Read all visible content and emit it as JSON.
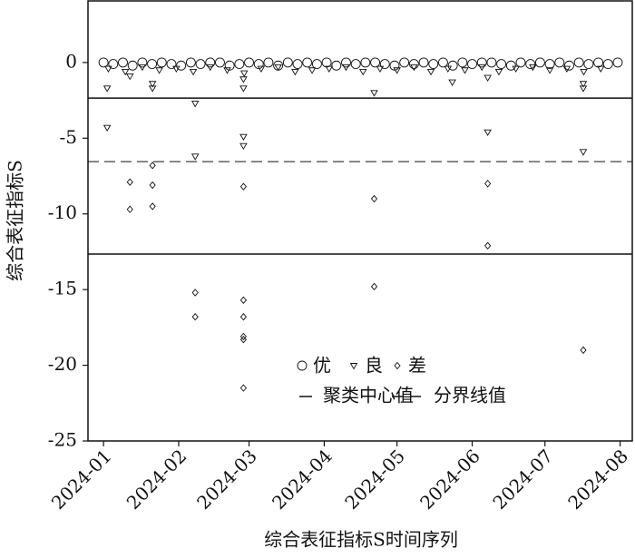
{
  "chart_data": {
    "type": "scatter",
    "xlabel": "综合表征指标S时间序列",
    "ylabel": "综合表征指标S",
    "xlim": [
      -5.4,
      219
    ],
    "ylim": [
      -25,
      4.07
    ],
    "xticks": [
      {
        "value": 1,
        "label": "2024-01"
      },
      {
        "value": 32,
        "label": "2024-02"
      },
      {
        "value": 61,
        "label": "2024-03"
      },
      {
        "value": 92,
        "label": "2024-04"
      },
      {
        "value": 122,
        "label": "2024-05"
      },
      {
        "value": 153,
        "label": "2024-06"
      },
      {
        "value": 183,
        "label": "2024-07"
      },
      {
        "value": 214,
        "label": "2024-08"
      }
    ],
    "yticks": [
      -25,
      -20,
      -15,
      -10,
      -5,
      0
    ],
    "color": "#111111",
    "series": [
      {
        "name": "优",
        "marker": "circle",
        "x": [
          1,
          5,
          9,
          13,
          17,
          21,
          25,
          29,
          33,
          37,
          41,
          45,
          49,
          53,
          57,
          61,
          65,
          69,
          73,
          77,
          81,
          85,
          89,
          93,
          97,
          101,
          105,
          109,
          113,
          117,
          121,
          125,
          129,
          133,
          137,
          141,
          145,
          149,
          153,
          157,
          161,
          165,
          169,
          173,
          177,
          181,
          185,
          189,
          193,
          197,
          201,
          205,
          209,
          213
        ],
        "values": [
          0,
          -0.1,
          0,
          -0.2,
          0,
          -0.1,
          0,
          -0.1,
          -0.2,
          0,
          -0.1,
          0,
          0,
          -0.2,
          -0.1,
          0,
          -0.1,
          0,
          -0.2,
          0,
          -0.1,
          0,
          -0.1,
          0,
          -0.2,
          0,
          -0.1,
          0,
          0,
          -0.1,
          -0.2,
          0,
          -0.1,
          0,
          -0.1,
          0,
          -0.2,
          0,
          -0.1,
          0,
          0,
          -0.1,
          -0.2,
          0,
          -0.1,
          0,
          -0.1,
          0,
          -0.2,
          0,
          -0.1,
          0,
          -0.1,
          0
        ]
      },
      {
        "name": "良",
        "marker": "triangle",
        "x": [
          3,
          10,
          17,
          24,
          31,
          38,
          45,
          52,
          59,
          66,
          73,
          80,
          87,
          94,
          101,
          108,
          115,
          122,
          129,
          136,
          143,
          150,
          157,
          164,
          171,
          178,
          185,
          192,
          199,
          206,
          2.5,
          2.5,
          11.9,
          21.2,
          21.2,
          38.8,
          38.8,
          58.7,
          58.7,
          58.7,
          58.7,
          112.6,
          144.8,
          159.4,
          159.4,
          198.8,
          198.8,
          198.8
        ],
        "values": [
          -0.4,
          -0.6,
          -0.3,
          -0.5,
          -0.4,
          -0.6,
          -0.3,
          -0.5,
          -0.7,
          -0.4,
          -0.3,
          -0.6,
          -0.5,
          -0.4,
          -0.3,
          -0.6,
          -0.4,
          -0.5,
          -0.3,
          -0.6,
          -0.4,
          -0.5,
          -0.3,
          -0.6,
          -0.4,
          -0.3,
          -0.5,
          -0.4,
          -0.6,
          -0.4,
          -1.7,
          -4.3,
          -0.9,
          -1.4,
          -1.7,
          -2.7,
          -6.2,
          -1.1,
          -1.7,
          -4.9,
          -5.5,
          -2.0,
          -1.3,
          -1.0,
          -4.6,
          -1.4,
          -1.7,
          -5.9
        ]
      },
      {
        "name": "差",
        "marker": "diamond",
        "x": [
          11.9,
          11.9,
          21.2,
          21.2,
          21.2,
          38.8,
          38.8,
          58.7,
          58.7,
          58.7,
          58.7,
          58.7,
          58.7,
          112.6,
          112.6,
          159.4,
          159.4,
          198.8
        ],
        "values": [
          -7.9,
          -9.7,
          -6.8,
          -8.1,
          -9.5,
          -15.2,
          -16.8,
          -8.2,
          -15.7,
          -16.8,
          -18.1,
          -18.3,
          -21.5,
          -9.0,
          -14.8,
          -8.0,
          -12.1,
          -19.0
        ]
      }
    ],
    "lines": [
      {
        "name": "聚类中心值",
        "style": "solid",
        "values": [
          -2.35,
          -12.65
        ]
      },
      {
        "name": "分界线值",
        "style": "dashed",
        "values": [
          -6.55
        ]
      }
    ]
  }
}
